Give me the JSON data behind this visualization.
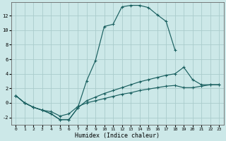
{
  "xlabel": "Humidex (Indice chaleur)",
  "bg_color": "#cce8e8",
  "grid_color": "#aacccc",
  "line_color": "#1a6060",
  "xlim": [
    -0.5,
    23.5
  ],
  "ylim": [
    -3.0,
    13.8
  ],
  "xticks": [
    0,
    1,
    2,
    3,
    4,
    5,
    6,
    7,
    8,
    9,
    10,
    11,
    12,
    13,
    14,
    15,
    16,
    17,
    18,
    19,
    20,
    21,
    22,
    23
  ],
  "yticks": [
    -2,
    0,
    2,
    4,
    6,
    8,
    10,
    12
  ],
  "curve1_x": [
    0,
    1,
    2,
    3,
    4,
    5,
    6,
    7,
    8,
    9,
    10,
    11,
    12,
    13,
    14,
    15,
    16,
    17,
    18
  ],
  "curve1_y": [
    1.0,
    0.0,
    -0.6,
    -1.0,
    -1.5,
    -2.3,
    -2.3,
    -0.7,
    3.0,
    5.8,
    10.5,
    10.8,
    13.2,
    13.4,
    13.4,
    13.1,
    12.1,
    11.2,
    7.3
  ],
  "curve2_x": [
    0,
    1,
    2,
    3,
    4,
    5,
    6,
    7,
    8,
    9,
    10,
    11,
    12,
    13,
    14,
    15,
    16,
    17,
    18,
    19,
    20,
    21,
    22,
    23
  ],
  "curve2_y": [
    1.0,
    0.0,
    -0.6,
    -1.0,
    -1.5,
    -2.3,
    -2.3,
    -0.7,
    0.3,
    0.8,
    1.3,
    1.7,
    2.1,
    2.5,
    2.9,
    3.2,
    3.5,
    3.8,
    4.0,
    4.9,
    3.2,
    2.5,
    2.5,
    2.5
  ],
  "curve3_x": [
    0,
    1,
    2,
    3,
    4,
    5,
    6,
    7,
    8,
    9,
    10,
    11,
    12,
    13,
    14,
    15,
    16,
    17,
    18,
    19,
    20,
    21,
    22,
    23
  ],
  "curve3_y": [
    1.0,
    0.0,
    -0.6,
    -1.0,
    -1.2,
    -1.8,
    -1.5,
    -0.5,
    0.0,
    0.3,
    0.6,
    0.9,
    1.2,
    1.4,
    1.7,
    1.9,
    2.1,
    2.3,
    2.4,
    2.1,
    2.1,
    2.3,
    2.5,
    2.5
  ]
}
